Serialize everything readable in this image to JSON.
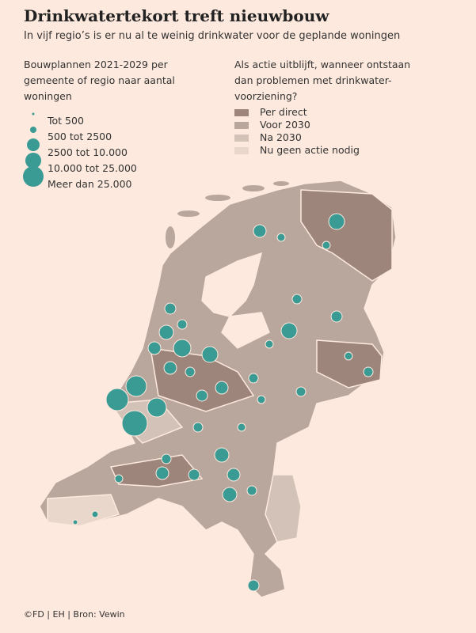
{
  "title": "Drinkwatertekort treft nieuwbouw",
  "subtitle": "In vijf regio’s is er nu al te weinig drinkwater voor de geplande woningen",
  "size_legend": {
    "title_lines": [
      "Bouwplannen 2021-2029 per",
      "gemeente of regio naar aantal",
      "woningen"
    ],
    "items": [
      "Tot 500",
      "500 tot 2500",
      "2500 tot 10.000",
      "10.000 tot 25.000",
      "Meer dan 25.000"
    ],
    "color": "#3a9a94"
  },
  "status_legend": {
    "title_lines": [
      "Als actie uitblijft, wanneer ontstaan",
      "dan problemen met drinkwater-",
      "voorziening?"
    ],
    "items": [
      {
        "label": "Per direct",
        "color": "#9d857c"
      },
      {
        "label": "Voor 2030",
        "color": "#b9a69d"
      },
      {
        "label": "Na 2030",
        "color": "#d3c2b8"
      },
      {
        "label": "Nu geen actie nodig",
        "color": "#ead7cb"
      }
    ]
  },
  "source": "©FD | EH | Bron: Vewin"
}
